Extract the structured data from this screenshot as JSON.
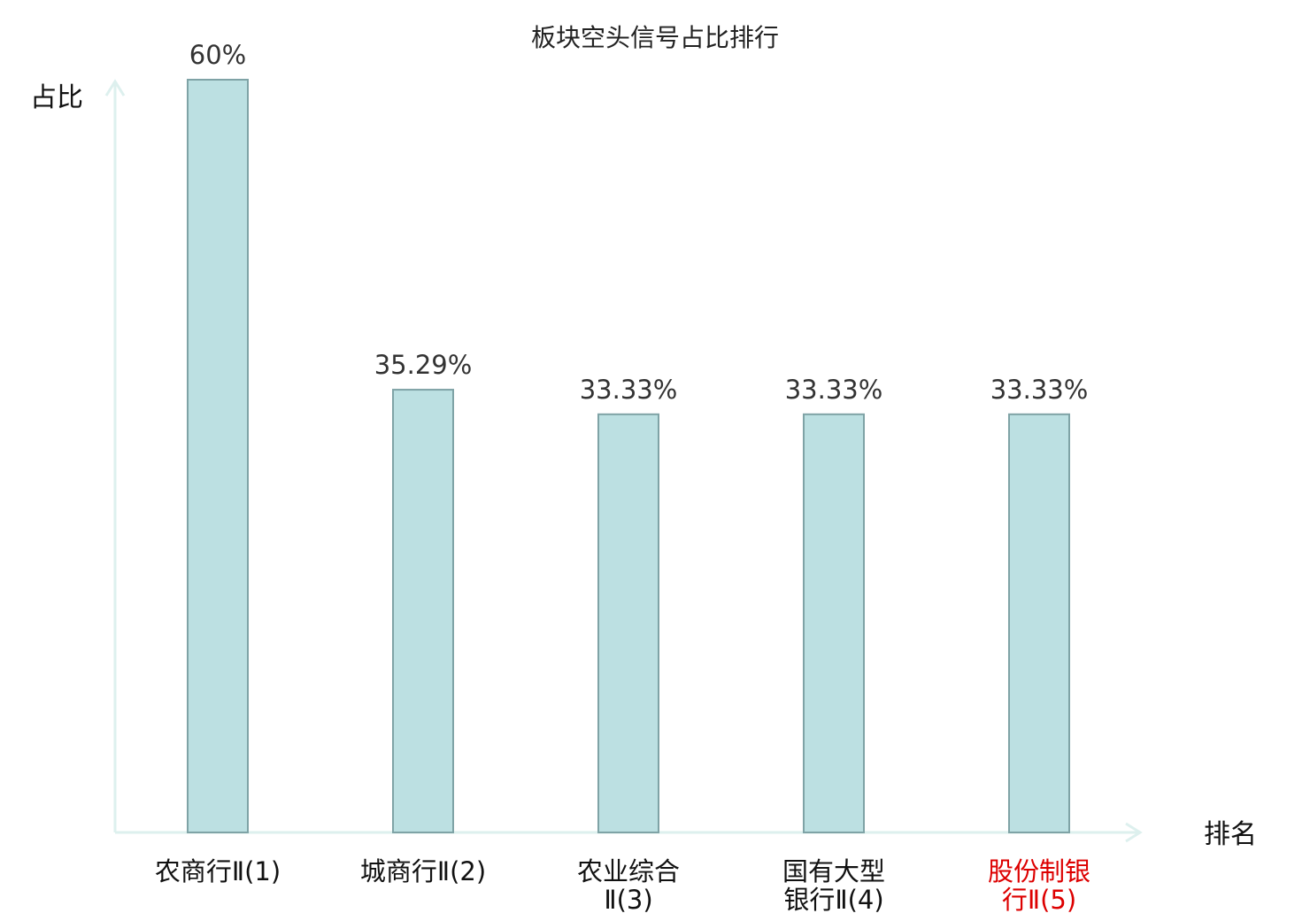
{
  "chart_data": {
    "type": "bar",
    "title": "板块空头信号占比排行",
    "ylabel": "占比",
    "xlabel": "排名",
    "categories": [
      [
        "农商行Ⅱ(1)"
      ],
      [
        "城商行Ⅱ(2)"
      ],
      [
        "农业综合",
        "Ⅱ(3)"
      ],
      [
        "国有大型",
        "银行Ⅱ(4)"
      ],
      [
        "股份制银",
        "行Ⅱ(5)"
      ]
    ],
    "values": [
      60,
      35.29,
      33.33,
      33.33,
      33.33
    ],
    "value_labels": [
      "60%",
      "35.29%",
      "33.33%",
      "33.33%",
      "33.33%"
    ],
    "highlight_index": 4,
    "ylim": [
      0,
      60
    ],
    "grid": false,
    "colors": {
      "bar_fill": "#bce0e2",
      "bar_stroke": "#7fa3a6",
      "axis": "#ddf0ee",
      "highlight_label": "#dd0000",
      "label": "#111111"
    }
  }
}
